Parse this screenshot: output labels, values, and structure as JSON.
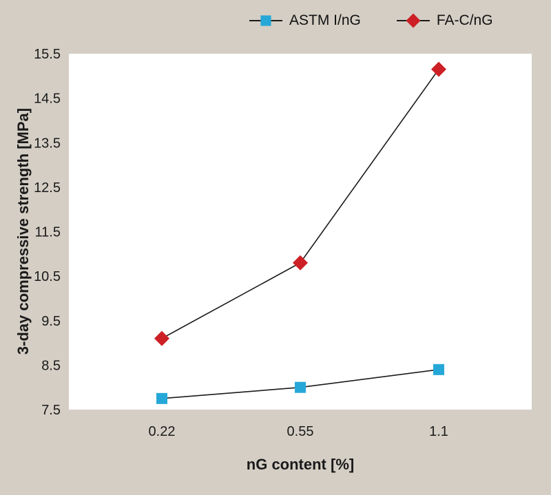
{
  "colors": {
    "background": "#d4cec5",
    "plot_bg": "#ffffff",
    "text": "#1a1a1a"
  },
  "chart_data": {
    "type": "line",
    "categories": [
      "0.22",
      "0.55",
      "1.1"
    ],
    "series": [
      {
        "name": "ASTM I/nG",
        "marker": "square",
        "color": "#25a8d8",
        "values": [
          7.75,
          8.0,
          8.4
        ]
      },
      {
        "name": "FA-C/nG",
        "marker": "diamond",
        "color": "#cd2026",
        "values": [
          9.1,
          10.8,
          15.15
        ]
      }
    ],
    "title": "",
    "xlabel": "nG content [%]",
    "ylabel": "3-day compressive strength [MPa]",
    "ylim": [
      7.5,
      15.5
    ],
    "yticks": [
      7.5,
      8.5,
      9.5,
      10.5,
      11.5,
      12.5,
      13.5,
      14.5,
      15.5
    ],
    "line_color": "#1a1a1a",
    "grid": false,
    "legend_position": "top"
  }
}
